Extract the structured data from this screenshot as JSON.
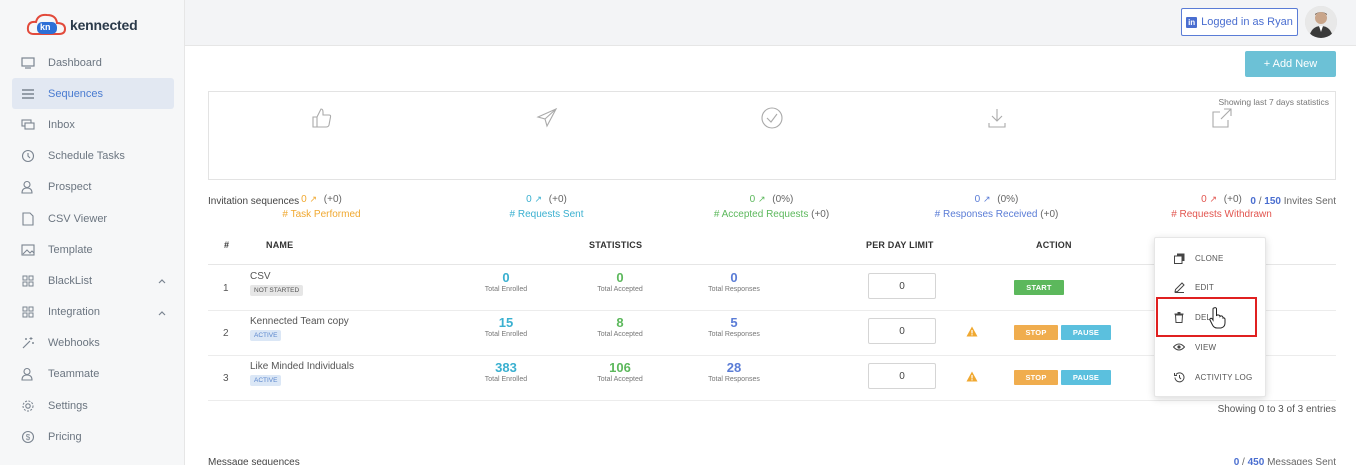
{
  "brand": {
    "name": "kennected",
    "mark": "kn"
  },
  "sidebar": {
    "items": [
      {
        "label": "Dashboard",
        "icon": "monitor-icon"
      },
      {
        "label": "Sequences",
        "icon": "list-icon",
        "active": true
      },
      {
        "label": "Inbox",
        "icon": "chat-icon"
      },
      {
        "label": "Schedule Tasks",
        "icon": "clock-icon"
      },
      {
        "label": "Prospect",
        "icon": "user-icon"
      },
      {
        "label": "CSV Viewer",
        "icon": "file-icon"
      },
      {
        "label": "Template",
        "icon": "image-icon"
      },
      {
        "label": "BlackList",
        "icon": "grid-icon",
        "expandable": true
      },
      {
        "label": "Integration",
        "icon": "grid-icon",
        "expandable": true
      },
      {
        "label": "Webhooks",
        "icon": "sparkle-icon"
      },
      {
        "label": "Teammate",
        "icon": "user-icon"
      },
      {
        "label": "Settings",
        "icon": "gear-icon"
      },
      {
        "label": "Pricing",
        "icon": "dollar-icon"
      }
    ]
  },
  "header": {
    "login_label": "Logged in as Ryan",
    "linkedin_mark": "in"
  },
  "toolbar": {
    "add_new_label": "+ Add New"
  },
  "stats": {
    "note": "Showing last 7 days statistics",
    "cards": [
      {
        "icon": "thumbs-up-icon",
        "value": "0",
        "delta": "(+0)",
        "label": "# Task Performed",
        "extra": "",
        "color": "#f0a830"
      },
      {
        "icon": "paper-plane-icon",
        "value": "0",
        "delta": "(+0)",
        "label": "# Requests Sent",
        "extra": "",
        "color": "#5bc0de"
      },
      {
        "icon": "check-circle-icon",
        "value": "0",
        "delta": "(0%)",
        "label": "# Accepted Requests",
        "extra": "(+0)",
        "color": "#5cb85c"
      },
      {
        "icon": "download-icon",
        "value": "0",
        "delta": "(0%)",
        "label": "# Responses Received",
        "extra": "(+0)",
        "color": "#5a7cd6"
      },
      {
        "icon": "external-link-icon",
        "value": "0",
        "delta": "(+0)",
        "label": "# Requests Withdrawn",
        "extra": "",
        "color": "#e2554f"
      }
    ]
  },
  "invitations": {
    "title": "Invitation sequences",
    "sent_count": "0",
    "sent_total": "150",
    "sent_label": "Invites Sent",
    "columns": [
      "#",
      "NAME",
      "STATISTICS",
      "PER DAY LIMIT",
      "ACTION"
    ],
    "rows": [
      {
        "num": "1",
        "name": "CSV",
        "status": "NOT STARTED",
        "enrolled": "0",
        "accepted": "0",
        "responses": "0",
        "limit": "0",
        "actions": [
          "START"
        ],
        "warning": false
      },
      {
        "num": "2",
        "name": "Kennected Team copy",
        "status": "ACTIVE",
        "enrolled": "15",
        "accepted": "8",
        "responses": "5",
        "limit": "0",
        "actions": [
          "STOP",
          "PAUSE"
        ],
        "warning": true
      },
      {
        "num": "3",
        "name": "Like Minded Individuals",
        "status": "ACTIVE",
        "enrolled": "383",
        "accepted": "106",
        "responses": "28",
        "limit": "0",
        "actions": [
          "STOP",
          "PAUSE"
        ],
        "warning": true
      }
    ],
    "stat_labels": {
      "enrolled": "Total Enrolled",
      "accepted": "Total Accepted",
      "responses": "Total Responses"
    },
    "showing": "Showing 0 to 3 of 3 entries"
  },
  "messages": {
    "title": "Message sequences",
    "sent_count": "0",
    "sent_total": "450",
    "sent_label": "Messages Sent"
  },
  "dropdown": {
    "items": [
      {
        "label": "CLONE",
        "icon": "clone-icon"
      },
      {
        "label": "EDIT",
        "icon": "pencil-icon"
      },
      {
        "label": "DEL",
        "icon": "trash-icon"
      },
      {
        "label": "VIEW",
        "icon": "eye-icon"
      },
      {
        "label": "ACTIVITY LOG",
        "icon": "history-icon"
      }
    ]
  },
  "colors": {
    "enrolled": "#3ab0d0",
    "accepted": "#5cb85c",
    "responses": "#5a7cd6",
    "accent": "#6cc1d6"
  }
}
